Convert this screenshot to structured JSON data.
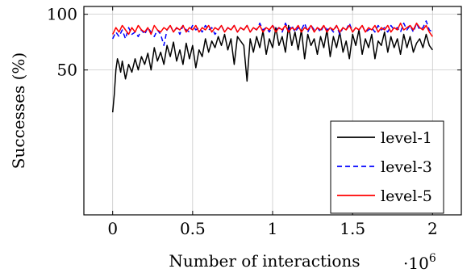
{
  "chart_data": {
    "type": "line",
    "title": "",
    "xlabel": "Number of interactions",
    "xmultiplier": "·10",
    "xmultiplier_exp": "6",
    "ylabel": "Successes (%)",
    "xlim": [
      -0.18,
      2.18
    ],
    "ylim": [
      -0.8,
      1.07
    ],
    "xticks": [
      0,
      0.5,
      1,
      1.5,
      2
    ],
    "xtick_labels": [
      "0",
      "0.5",
      "1",
      "1.5",
      "2"
    ],
    "yticks": [
      0.5,
      1.0
    ],
    "ytick_labels": [
      "50",
      "100"
    ],
    "grid": true,
    "legend_position": "lower-right",
    "series": [
      {
        "name": "level-1",
        "color": "#000000",
        "dash": "solid",
        "x": [
          0.0,
          0.01,
          0.02,
          0.03,
          0.04,
          0.05,
          0.06,
          0.08,
          0.1,
          0.12,
          0.14,
          0.16,
          0.18,
          0.2,
          0.22,
          0.24,
          0.26,
          0.28,
          0.3,
          0.32,
          0.34,
          0.36,
          0.38,
          0.4,
          0.42,
          0.44,
          0.46,
          0.48,
          0.5,
          0.52,
          0.54,
          0.56,
          0.58,
          0.6,
          0.62,
          0.64,
          0.66,
          0.68,
          0.7,
          0.72,
          0.74,
          0.76,
          0.78,
          0.8,
          0.82,
          0.84,
          0.86,
          0.88,
          0.9,
          0.92,
          0.94,
          0.96,
          0.98,
          1.0,
          1.02,
          1.04,
          1.06,
          1.08,
          1.1,
          1.12,
          1.14,
          1.16,
          1.18,
          1.2,
          1.22,
          1.24,
          1.26,
          1.28,
          1.3,
          1.32,
          1.34,
          1.36,
          1.38,
          1.4,
          1.42,
          1.44,
          1.46,
          1.48,
          1.5,
          1.52,
          1.54,
          1.56,
          1.58,
          1.6,
          1.62,
          1.64,
          1.66,
          1.68,
          1.7,
          1.72,
          1.74,
          1.76,
          1.78,
          1.8,
          1.82,
          1.84,
          1.86,
          1.88,
          1.9,
          1.92,
          1.94,
          1.96,
          1.98,
          2.0
        ],
        "y": [
          0.12,
          0.28,
          0.5,
          0.6,
          0.55,
          0.48,
          0.58,
          0.42,
          0.55,
          0.48,
          0.6,
          0.5,
          0.62,
          0.55,
          0.65,
          0.5,
          0.7,
          0.58,
          0.66,
          0.55,
          0.72,
          0.62,
          0.75,
          0.58,
          0.68,
          0.55,
          0.74,
          0.6,
          0.72,
          0.52,
          0.68,
          0.62,
          0.78,
          0.66,
          0.76,
          0.7,
          0.8,
          0.72,
          0.82,
          0.68,
          0.78,
          0.55,
          0.8,
          0.76,
          0.72,
          0.4,
          0.78,
          0.66,
          0.8,
          0.7,
          0.85,
          0.64,
          0.78,
          0.7,
          0.88,
          0.72,
          0.8,
          0.66,
          0.9,
          0.72,
          0.84,
          0.68,
          0.86,
          0.6,
          0.82,
          0.72,
          0.78,
          0.64,
          0.8,
          0.7,
          0.86,
          0.62,
          0.8,
          0.7,
          0.84,
          0.66,
          0.76,
          0.6,
          0.82,
          0.72,
          0.86,
          0.64,
          0.78,
          0.7,
          0.82,
          0.6,
          0.76,
          0.72,
          0.84,
          0.66,
          0.8,
          0.7,
          0.78,
          0.64,
          0.82,
          0.7,
          0.8,
          0.66,
          0.74,
          0.78,
          0.7,
          0.82,
          0.72,
          0.68
        ]
      },
      {
        "name": "level-3",
        "color": "#0000ff",
        "dash": "dashed",
        "x": [
          0.0,
          0.02,
          0.04,
          0.06,
          0.08,
          0.1,
          0.12,
          0.14,
          0.16,
          0.18,
          0.2,
          0.22,
          0.24,
          0.26,
          0.28,
          0.3,
          0.32,
          0.34,
          0.36,
          0.38,
          0.4,
          0.42,
          0.44,
          0.46,
          0.48,
          0.5,
          0.52,
          0.54,
          0.56,
          0.58,
          0.6,
          0.62,
          0.64,
          0.66,
          0.68,
          0.7,
          0.72,
          0.74,
          0.76,
          0.78,
          0.8,
          0.82,
          0.84,
          0.86,
          0.88,
          0.9,
          0.92,
          0.94,
          0.96,
          0.98,
          1.0,
          1.02,
          1.04,
          1.06,
          1.08,
          1.1,
          1.12,
          1.14,
          1.16,
          1.18,
          1.2,
          1.22,
          1.24,
          1.26,
          1.28,
          1.3,
          1.32,
          1.34,
          1.36,
          1.38,
          1.4,
          1.42,
          1.44,
          1.46,
          1.48,
          1.5,
          1.52,
          1.54,
          1.56,
          1.58,
          1.6,
          1.62,
          1.64,
          1.66,
          1.68,
          1.7,
          1.72,
          1.74,
          1.76,
          1.78,
          1.8,
          1.82,
          1.84,
          1.86,
          1.88,
          1.9,
          1.92,
          1.94,
          1.96,
          1.98,
          2.0
        ],
        "y": [
          0.78,
          0.84,
          0.8,
          0.86,
          0.78,
          0.88,
          0.82,
          0.84,
          0.8,
          0.86,
          0.82,
          0.88,
          0.84,
          0.8,
          0.86,
          0.82,
          0.72,
          0.86,
          0.9,
          0.84,
          0.88,
          0.82,
          0.9,
          0.86,
          0.84,
          0.9,
          0.86,
          0.88,
          0.84,
          0.9,
          0.86,
          0.88,
          0.82,
          0.86,
          0.9,
          0.84,
          0.88,
          0.86,
          0.9,
          0.84,
          0.88,
          0.86,
          0.9,
          0.84,
          0.88,
          0.86,
          0.92,
          0.86,
          0.88,
          0.84,
          0.9,
          0.86,
          0.88,
          0.84,
          0.92,
          0.86,
          0.9,
          0.84,
          0.88,
          0.86,
          0.92,
          0.84,
          0.9,
          0.86,
          0.88,
          0.84,
          0.9,
          0.86,
          0.88,
          0.84,
          0.9,
          0.82,
          0.88,
          0.86,
          0.92,
          0.84,
          0.88,
          0.86,
          0.9,
          0.84,
          0.86,
          0.88,
          0.84,
          0.9,
          0.86,
          0.88,
          0.84,
          0.9,
          0.86,
          0.88,
          0.84,
          0.92,
          0.86,
          0.9,
          0.84,
          0.92,
          0.86,
          0.88,
          0.94,
          0.86,
          0.84
        ]
      },
      {
        "name": "level-5",
        "color": "#ff0000",
        "dash": "solid",
        "x": [
          0.0,
          0.02,
          0.04,
          0.06,
          0.08,
          0.1,
          0.12,
          0.14,
          0.16,
          0.18,
          0.2,
          0.22,
          0.24,
          0.26,
          0.28,
          0.3,
          0.32,
          0.34,
          0.36,
          0.38,
          0.4,
          0.42,
          0.44,
          0.46,
          0.48,
          0.5,
          0.52,
          0.54,
          0.56,
          0.58,
          0.6,
          0.62,
          0.64,
          0.66,
          0.68,
          0.7,
          0.72,
          0.74,
          0.76,
          0.78,
          0.8,
          0.82,
          0.84,
          0.86,
          0.88,
          0.9,
          0.92,
          0.94,
          0.96,
          0.98,
          1.0,
          1.02,
          1.04,
          1.06,
          1.08,
          1.1,
          1.12,
          1.14,
          1.16,
          1.18,
          1.2,
          1.22,
          1.24,
          1.26,
          1.28,
          1.3,
          1.32,
          1.34,
          1.36,
          1.38,
          1.4,
          1.42,
          1.44,
          1.46,
          1.48,
          1.5,
          1.52,
          1.54,
          1.56,
          1.58,
          1.6,
          1.62,
          1.64,
          1.66,
          1.68,
          1.7,
          1.72,
          1.74,
          1.76,
          1.78,
          1.8,
          1.82,
          1.84,
          1.86,
          1.88,
          1.9,
          1.92,
          1.94,
          1.96,
          1.98,
          2.0
        ],
        "y": [
          0.82,
          0.88,
          0.84,
          0.9,
          0.86,
          0.82,
          0.88,
          0.84,
          0.9,
          0.86,
          0.84,
          0.88,
          0.82,
          0.9,
          0.86,
          0.84,
          0.88,
          0.86,
          0.9,
          0.84,
          0.88,
          0.86,
          0.9,
          0.84,
          0.88,
          0.86,
          0.9,
          0.84,
          0.88,
          0.86,
          0.9,
          0.84,
          0.88,
          0.86,
          0.9,
          0.84,
          0.88,
          0.86,
          0.9,
          0.84,
          0.88,
          0.86,
          0.9,
          0.84,
          0.88,
          0.86,
          0.9,
          0.84,
          0.88,
          0.86,
          0.9,
          0.84,
          0.88,
          0.86,
          0.9,
          0.84,
          0.88,
          0.86,
          0.9,
          0.84,
          0.88,
          0.86,
          0.9,
          0.84,
          0.88,
          0.86,
          0.9,
          0.84,
          0.88,
          0.86,
          0.9,
          0.84,
          0.88,
          0.86,
          0.9,
          0.84,
          0.88,
          0.86,
          0.9,
          0.84,
          0.88,
          0.86,
          0.9,
          0.84,
          0.88,
          0.86,
          0.9,
          0.84,
          0.88,
          0.86,
          0.92,
          0.86,
          0.88,
          0.9,
          0.86,
          0.92,
          0.88,
          0.86,
          0.9,
          0.84,
          0.8
        ]
      }
    ]
  }
}
